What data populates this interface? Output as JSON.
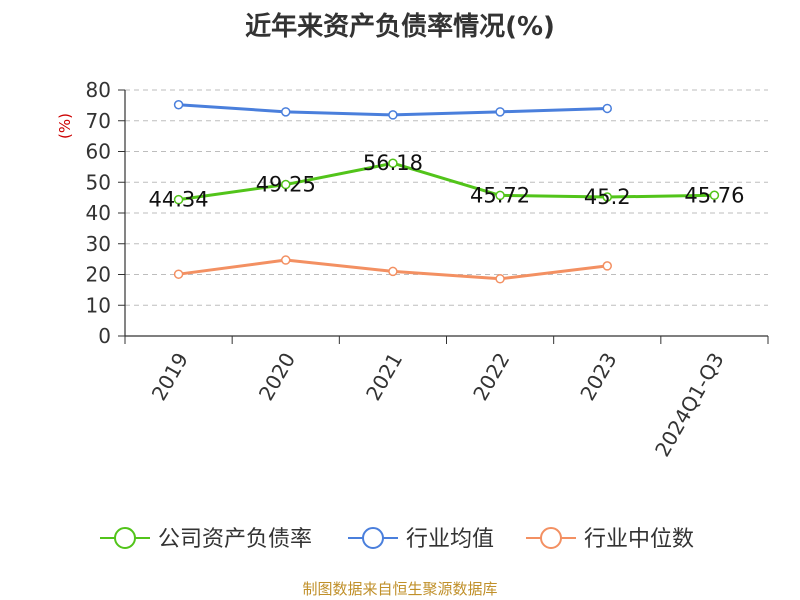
{
  "chart_data": {
    "type": "line",
    "title": "近年来资产负债率情况(%)",
    "ylabel": "(%)",
    "xlabel": "",
    "categories": [
      "2019",
      "2020",
      "2021",
      "2022",
      "2023",
      "2024Q1-Q3"
    ],
    "ylim": [
      0,
      80
    ],
    "yticks": [
      0,
      10,
      20,
      30,
      40,
      50,
      60,
      70,
      80
    ],
    "grid": true,
    "legend_position": "bottom",
    "series": [
      {
        "name": "公司资产负债率",
        "color": "#52c41a",
        "values": [
          44.34,
          49.25,
          56.18,
          45.72,
          45.2,
          45.76
        ],
        "labels": [
          "44.34",
          "49.25",
          "56.18",
          "45.72",
          "45.2",
          "45.76"
        ]
      },
      {
        "name": "行业均值",
        "color": "#4a7fdc",
        "values": [
          75.2,
          72.9,
          71.9,
          72.9,
          74.0,
          null
        ]
      },
      {
        "name": "行业中位数",
        "color": "#f39062",
        "values": [
          20.1,
          24.7,
          21.0,
          18.6,
          22.8,
          null
        ]
      }
    ]
  },
  "source": "制图数据来自恒生聚源数据库"
}
